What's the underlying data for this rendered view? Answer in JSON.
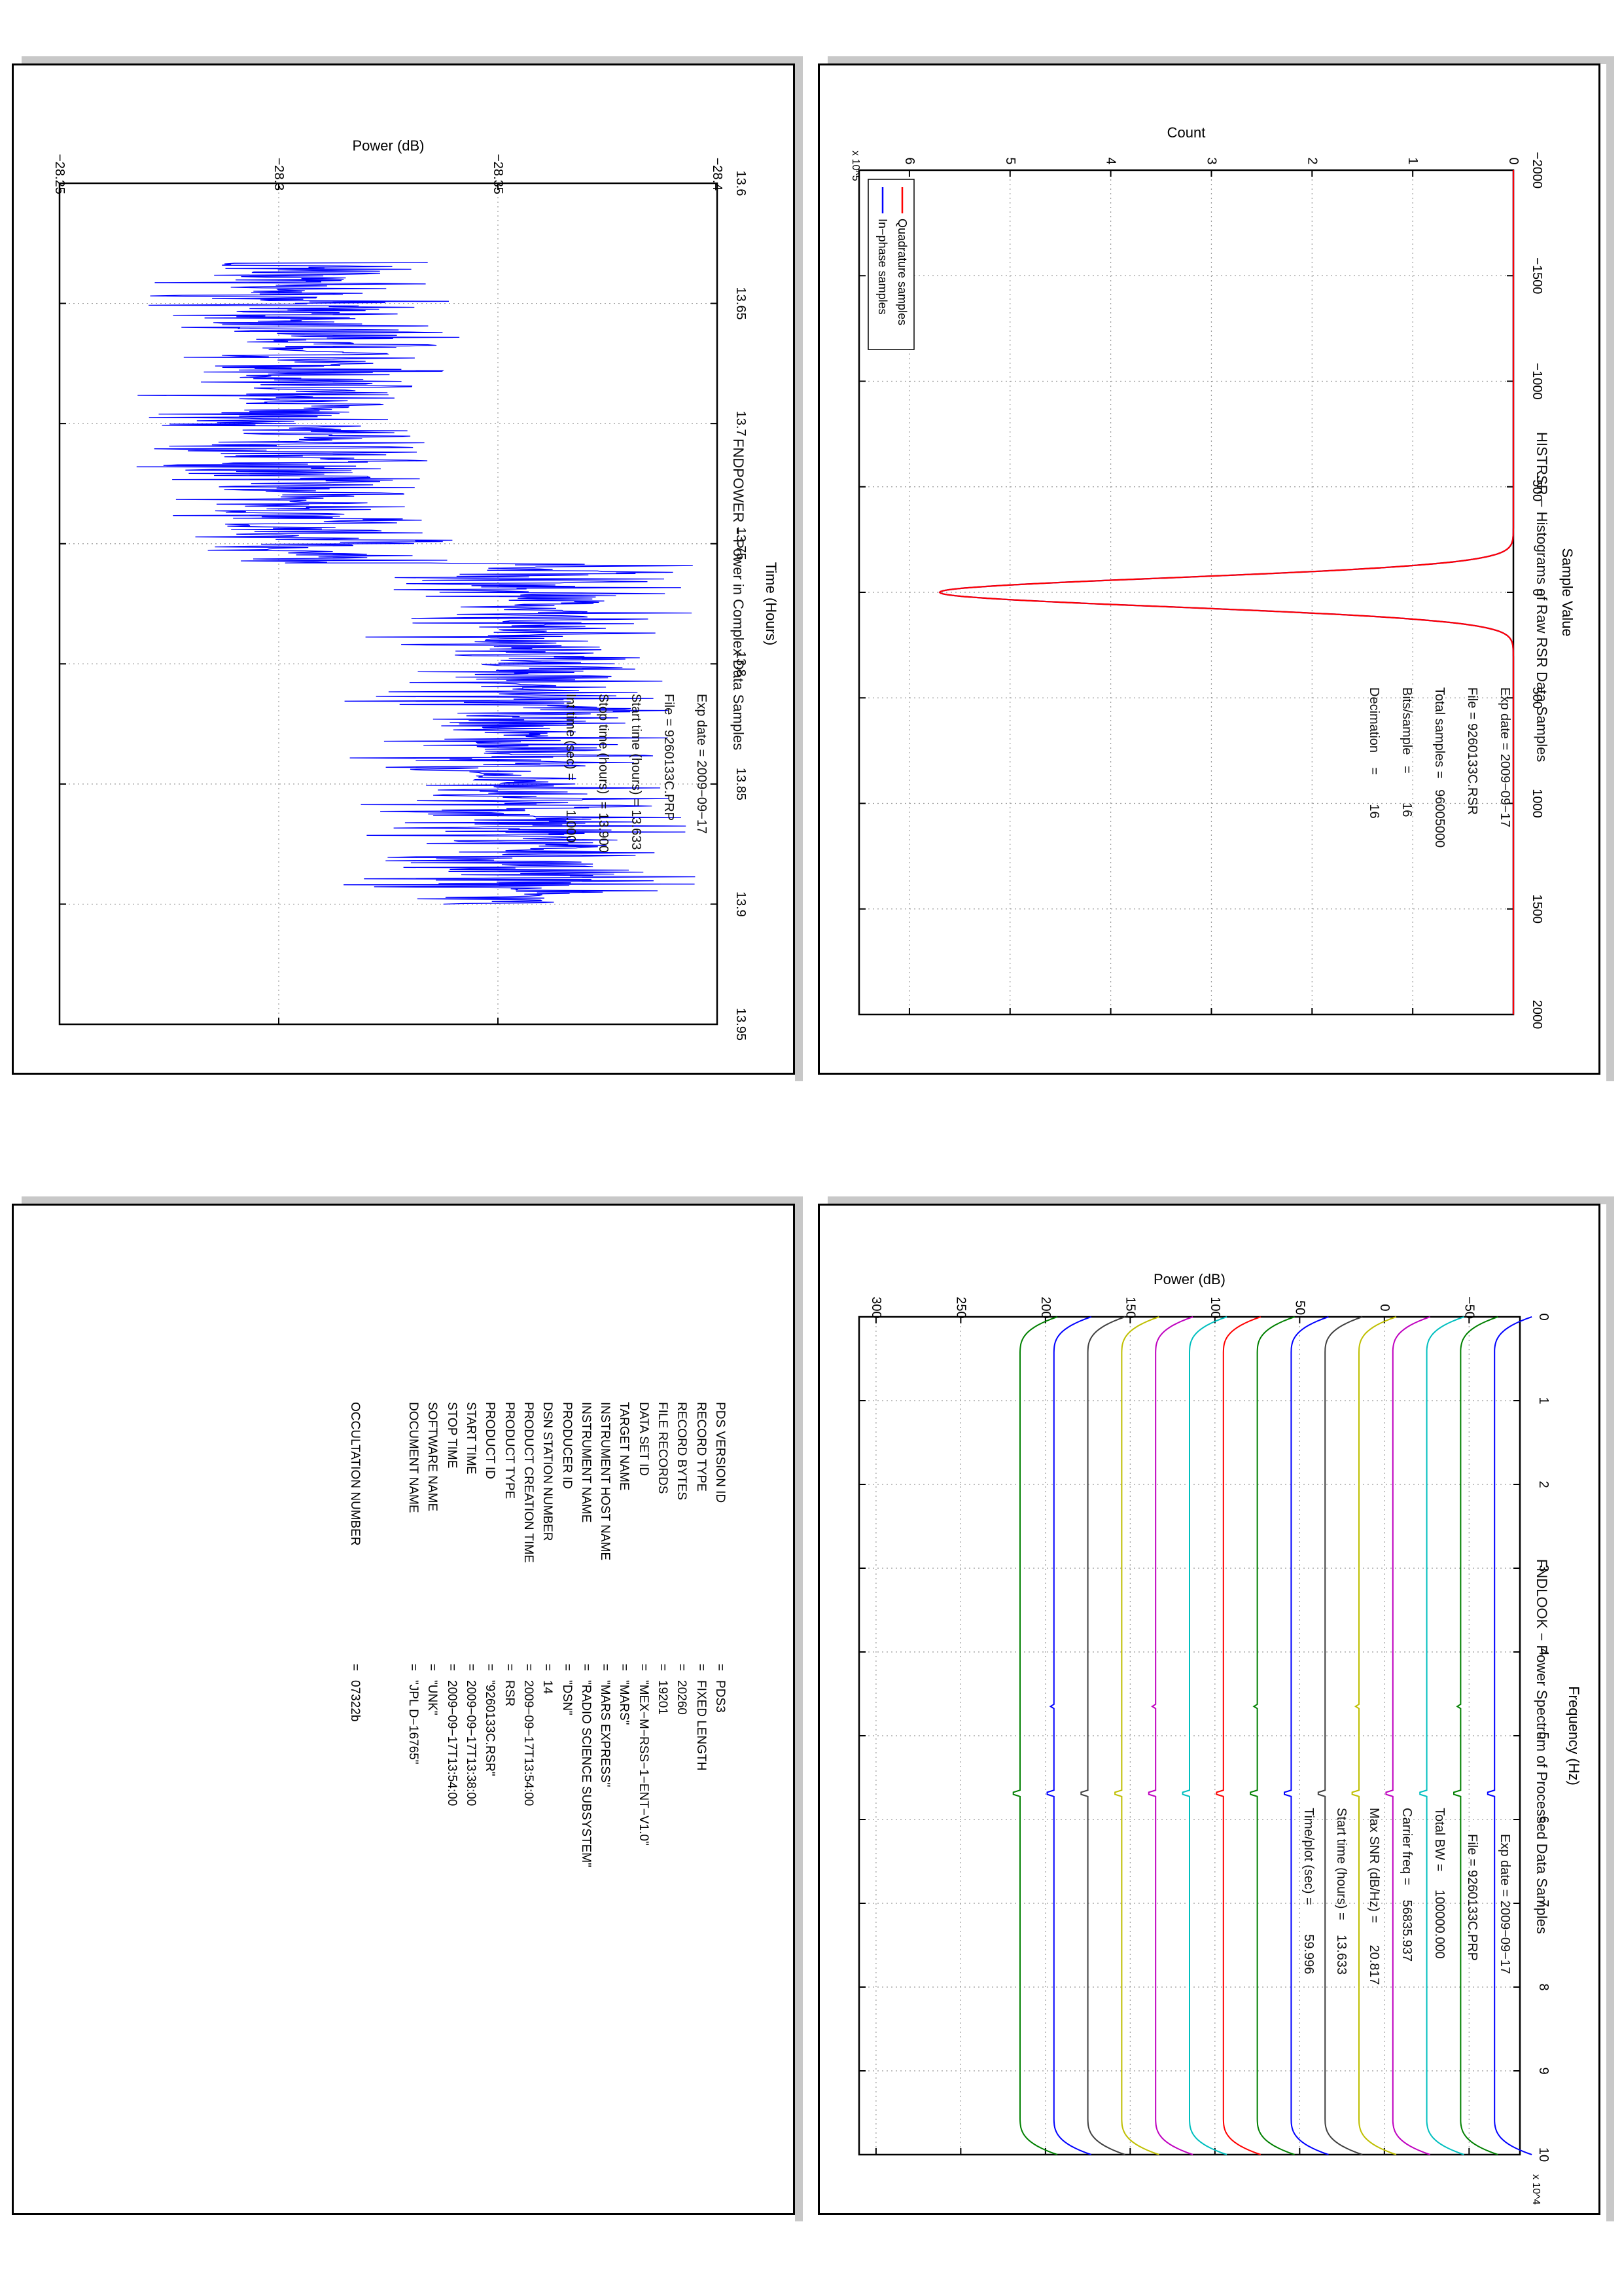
{
  "colors": {
    "blue": "#0000ff",
    "red": "#ff0000",
    "green": "#008000",
    "cyan": "#00bfbf",
    "magenta": "#bf00bf",
    "olive": "#bfbf00",
    "black": "#404040",
    "frame": "#000000",
    "grid": "#9a9a9a"
  },
  "histrsr": {
    "stats": {
      "exp_date": "Exp date = 2009−09−17",
      "file": "File = 9260133C.RSR",
      "total_samples": "Total samples =   96005000",
      "bits_sample": "Bits/sample   =        16",
      "decimation": "Decimation    =        16"
    }
  },
  "fndpower": {
    "stats": {
      "exp_date": "Exp date = 2009−09−17",
      "file": "File = 9260133C.PRP",
      "start_time": "Start time (hours) = 13.633",
      "stop_time": "Stop time (hours)  = 13.900",
      "int_time": "Int time (sec) =        1.000"
    }
  },
  "fndlook": {
    "stats": {
      "exp_date": "Exp date = 2009−09−17",
      "file": "File = 9260133C.PRP",
      "total_bw": "Total BW =     100000.000",
      "carrier_freq": "Carrier freq =    56835.937",
      "max_snr": "Max SNR (dB/Hz) =      20.817",
      "start_time": "Start time (hours) =    13.633",
      "time_plot": "Time/plot (sec) =        59.996"
    }
  },
  "chart_data": [
    {
      "type": "line",
      "title": "HISTRSR − Histograms of Raw RSR Data Samples",
      "xlabel": "Sample Value",
      "ylabel": "Count",
      "xlim": [
        -2000,
        2000
      ],
      "ylim": [
        0,
        650000
      ],
      "y_exponent": "x 10^5",
      "x_ticks": [
        "−2000",
        "−1500",
        "−1000",
        "−500",
        "0",
        "500",
        "1000",
        "1500",
        "2000"
      ],
      "y_ticks": [
        "0",
        "1",
        "2",
        "3",
        "4",
        "5",
        "6"
      ],
      "grid": true,
      "legend": "top-right",
      "series": [
        {
          "name": "In−phase samples",
          "color": "blue",
          "x": [
            -2000,
            -1000,
            -500,
            -300,
            -200,
            -150,
            -100,
            -60,
            -30,
            0,
            30,
            60,
            100,
            150,
            200,
            300,
            500,
            1000,
            2000
          ],
          "y": [
            0,
            0,
            0,
            600,
            15000,
            60000,
            195000,
            365000,
            510000,
            570000,
            510000,
            365000,
            195000,
            60000,
            15000,
            600,
            0,
            0,
            0
          ]
        },
        {
          "name": "Quadrature samples",
          "color": "red",
          "x": [
            -2000,
            -1000,
            -500,
            -300,
            -200,
            -150,
            -100,
            -60,
            -30,
            0,
            30,
            60,
            100,
            150,
            200,
            300,
            500,
            1000,
            2000
          ],
          "y": [
            0,
            0,
            0,
            600,
            15000,
            60000,
            195000,
            365000,
            510000,
            570000,
            510000,
            365000,
            195000,
            60000,
            15000,
            600,
            0,
            0,
            0
          ]
        }
      ]
    },
    {
      "type": "line",
      "title": "FNDPOWER − Power in Complex Data Samples",
      "xlabel": "Time (Hours)",
      "ylabel": "Power (dB)",
      "xlim": [
        13.6,
        13.95
      ],
      "ylim": [
        -28.4,
        -28.25
      ],
      "x_ticks": [
        "13.6",
        "13.65",
        "13.7",
        "13.75",
        "13.8",
        "13.85",
        "13.9",
        "13.95"
      ],
      "y_ticks": [
        "−28.4",
        "−28.35",
        "−28.3",
        "−28.25"
      ],
      "grid": true,
      "series": [
        {
          "name": "",
          "color": "blue",
          "segments": [
            {
              "x_start": 13.633,
              "x_end": 13.758,
              "mean": -28.305,
              "spread": 0.028
            },
            {
              "x_start": 13.758,
              "x_end": 13.9,
              "mean": -28.357,
              "spread": 0.028
            }
          ],
          "x_sample": [
            13.633,
            13.65,
            13.675,
            13.7,
            13.725,
            13.75,
            13.758,
            13.775,
            13.8,
            13.825,
            13.85,
            13.875,
            13.9
          ],
          "y_sample": [
            -28.305,
            -28.302,
            -28.306,
            -28.303,
            -28.307,
            -28.304,
            -28.356,
            -28.358,
            -28.355,
            -28.357,
            -28.358,
            -28.356,
            -28.357
          ]
        }
      ]
    },
    {
      "type": "line",
      "title": "FNDLOOK − Power Spectrum of Processed Data Samples",
      "xlabel": "Frequency (Hz)",
      "ylabel": "Power (dB)",
      "xlim": [
        0,
        100000
      ],
      "ylim": [
        -80,
        310
      ],
      "x_exponent": "x 10^4",
      "x_ticks": [
        "0",
        "1",
        "2",
        "3",
        "4",
        "5",
        "6",
        "7",
        "8",
        "9",
        "10"
      ],
      "y_ticks": [
        "−50",
        "0",
        "50",
        "100",
        "150",
        "200",
        "250",
        "300"
      ],
      "grid": true,
      "series": [
        {
          "name": "",
          "color": "blue",
          "level": -65
        },
        {
          "name": "",
          "color": "green",
          "level": -45
        },
        {
          "name": "",
          "color": "cyan",
          "level": -25
        },
        {
          "name": "",
          "color": "magenta",
          "level": -5
        },
        {
          "name": "",
          "color": "olive",
          "level": 15
        },
        {
          "name": "",
          "color": "black",
          "level": 35
        },
        {
          "name": "",
          "color": "blue",
          "level": 55
        },
        {
          "name": "",
          "color": "green",
          "level": 75
        },
        {
          "name": "",
          "color": "red",
          "level": 95
        },
        {
          "name": "",
          "color": "cyan",
          "level": 115
        },
        {
          "name": "",
          "color": "magenta",
          "level": 135
        },
        {
          "name": "",
          "color": "olive",
          "level": 155
        },
        {
          "name": "",
          "color": "black",
          "level": 175
        },
        {
          "name": "",
          "color": "blue",
          "level": 195
        },
        {
          "name": "",
          "color": "green",
          "level": 215
        }
      ]
    },
    {
      "type": "table",
      "rows": [
        {
          "key": "PDS VERSION ID",
          "value": "PDS3"
        },
        {
          "key": "RECORD TYPE",
          "value": "FIXED LENGTH"
        },
        {
          "key": "RECORD BYTES",
          "value": "20260"
        },
        {
          "key": "FILE RECORDS",
          "value": "19201"
        },
        {
          "key": "DATA SET ID",
          "value": "\"MEX−M−RSS−1−ENT−V1.0\""
        },
        {
          "key": "TARGET NAME",
          "value": "\"MARS\""
        },
        {
          "key": "INSTRUMENT HOST NAME",
          "value": "\"MARS EXPRESS\""
        },
        {
          "key": "INSTRUMENT NAME",
          "value": "\"RADIO SCIENCE SUBSYSTEM\""
        },
        {
          "key": "PRODUCER ID",
          "value": "\"DSN\""
        },
        {
          "key": "DSN STATION NUMBER",
          "value": "14"
        },
        {
          "key": "PRODUCT CREATION TIME",
          "value": "2009−09−17T13:54:00"
        },
        {
          "key": "PRODUCT TYPE",
          "value": "RSR"
        },
        {
          "key": "PRODUCT ID",
          "value": "\"9260133C.RSR\""
        },
        {
          "key": "START TIME",
          "value": "2009−09−17T13:38:00"
        },
        {
          "key": "STOP TIME",
          "value": "2009−09−17T13:54:00"
        },
        {
          "key": "SOFTWARE NAME",
          "value": "\"UNK\""
        },
        {
          "key": "DOCUMENT NAME",
          "value": "\"JPL D−16765\""
        },
        {
          "key": "OCCULTATION NUMBER",
          "value": "07322b"
        }
      ]
    }
  ]
}
